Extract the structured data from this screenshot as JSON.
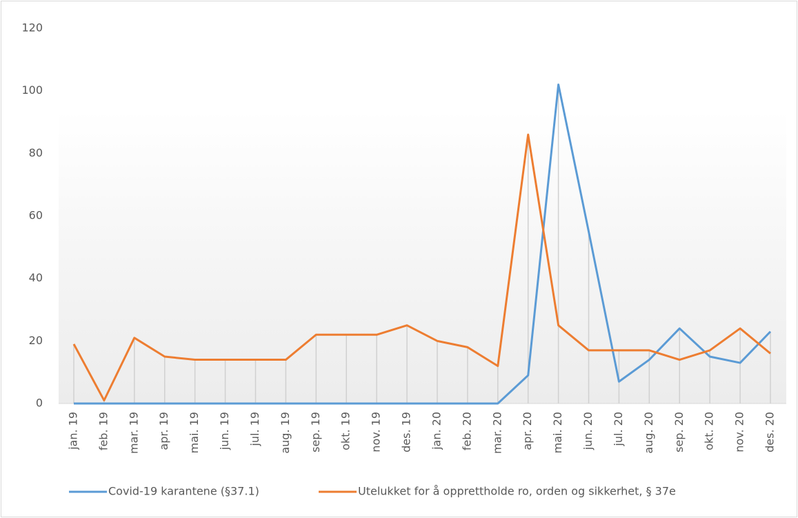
{
  "chart_data": {
    "type": "line",
    "categories": [
      "jan. 19",
      "feb. 19",
      "mar. 19",
      "apr. 19",
      "mai. 19",
      "jun. 19",
      "jul. 19",
      "aug. 19",
      "sep. 19",
      "okt. 19",
      "nov. 19",
      "des. 19",
      "jan. 20",
      "feb. 20",
      "mar. 20",
      "apr. 20",
      "mai. 20",
      "jun. 20",
      "jul. 20",
      "aug. 20",
      "sep. 20",
      "okt. 20",
      "nov. 20",
      "des. 20"
    ],
    "series": [
      {
        "name": "Covid-19 karantene (§37.1)",
        "color": "#5b9bd5",
        "values": [
          0,
          0,
          0,
          0,
          0,
          0,
          0,
          0,
          0,
          0,
          0,
          0,
          0,
          0,
          0,
          9,
          102,
          55,
          7,
          14,
          24,
          15,
          13,
          23
        ]
      },
      {
        "name": "Utelukket for å opprettholde ro, orden og sikkerhet, § 37e",
        "color": "#ed7d31",
        "values": [
          19,
          1,
          21,
          15,
          14,
          14,
          14,
          14,
          22,
          22,
          22,
          25,
          20,
          18,
          12,
          86,
          25,
          17,
          17,
          17,
          14,
          17,
          24,
          16
        ]
      }
    ],
    "ylim": [
      0,
      120
    ],
    "yticks": [
      0,
      20,
      40,
      60,
      80,
      100,
      120
    ],
    "drop_lines": true,
    "legend": "bottom"
  }
}
